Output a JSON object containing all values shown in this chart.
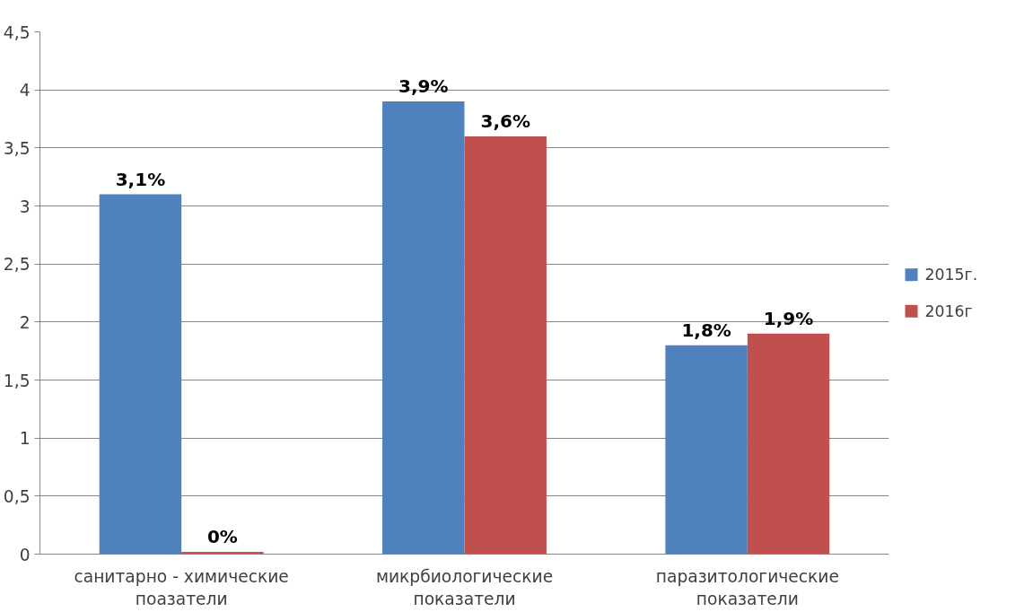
{
  "chart_data": {
    "type": "bar",
    "categories": [
      "санитарно - химические\nпоазатели",
      "микрбиологические\nпоказатели",
      "паразитологические\nпоказатели"
    ],
    "series": [
      {
        "name": "2015г.",
        "color": "#4f81bd",
        "values": [
          3.1,
          3.9,
          1.8
        ],
        "value_labels": [
          "3,1%",
          "3,9%",
          "1,8%"
        ]
      },
      {
        "name": "2016г",
        "color": "#c0504d",
        "values": [
          0.02,
          3.6,
          1.9
        ],
        "value_labels": [
          "0%",
          "3,6%",
          "1,9%"
        ]
      }
    ],
    "ylim": [
      0,
      4.5
    ],
    "yticks": [
      0,
      {
        "value": 0.5,
        "label": "0,5"
      },
      1,
      {
        "value": 1.5,
        "label": "1,5"
      },
      2,
      {
        "value": 2.5,
        "label": "2,5"
      },
      3,
      {
        "value": 3.5,
        "label": "3,5"
      },
      4,
      {
        "value": 4.5,
        "label": "4,5"
      }
    ],
    "grid": "y",
    "legend": "right"
  }
}
